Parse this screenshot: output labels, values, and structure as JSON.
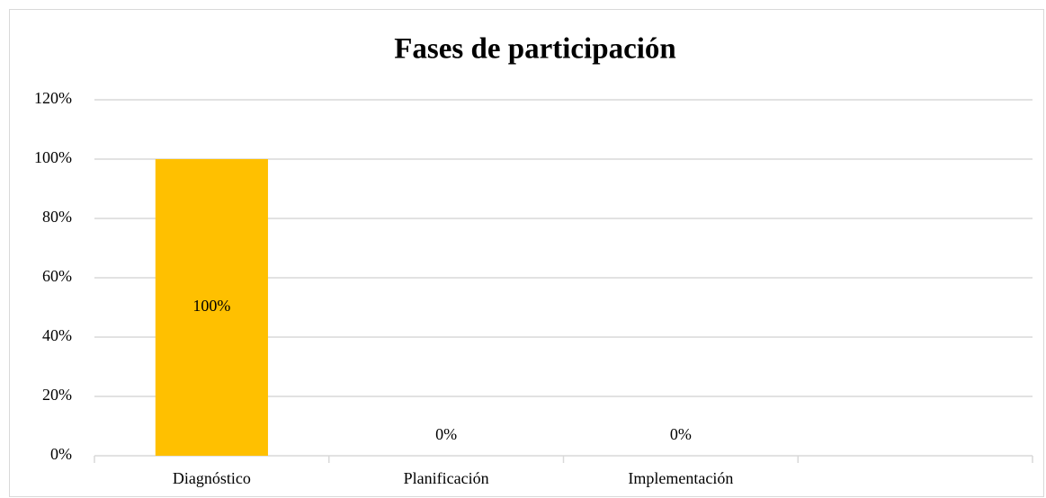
{
  "chart_data": {
    "type": "bar",
    "title": "Fases de participación",
    "categories": [
      "Diagnóstico",
      "Planificación",
      "Implementación",
      null
    ],
    "values": [
      100,
      0,
      0,
      null
    ],
    "value_labels": [
      "100%",
      "0%",
      "0%",
      null
    ],
    "color": "#ffc000",
    "ylim": [
      0,
      120
    ],
    "yticks": [
      {
        "value": 0,
        "label": "0%"
      },
      {
        "value": 20,
        "label": "20%"
      },
      {
        "value": 40,
        "label": "40%"
      },
      {
        "value": 60,
        "label": "60%"
      },
      {
        "value": 80,
        "label": "80%"
      },
      {
        "value": 100,
        "label": "100%"
      },
      {
        "value": 120,
        "label": "120%"
      }
    ],
    "grid": true
  }
}
